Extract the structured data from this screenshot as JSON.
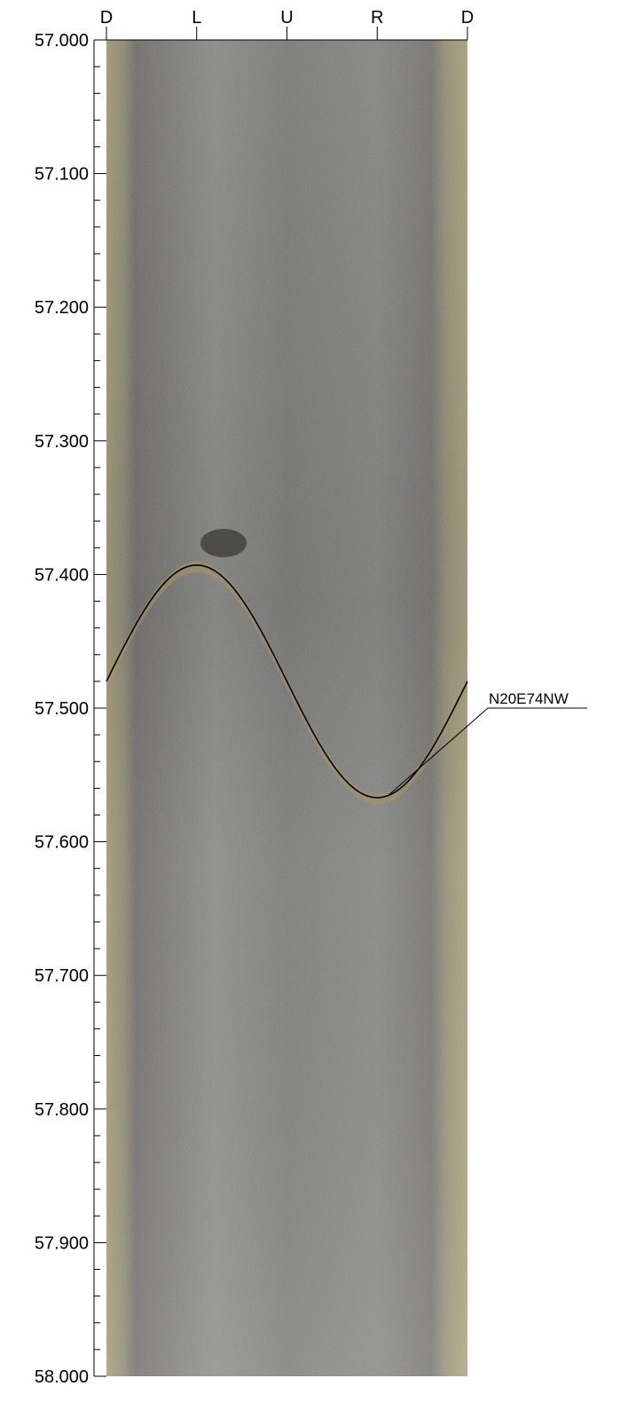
{
  "log": {
    "orientation_labels": [
      "D",
      "L",
      "U",
      "R",
      "D"
    ],
    "depth_labels": [
      "57.000",
      "57.100",
      "57.200",
      "57.300",
      "57.400",
      "57.500",
      "57.600",
      "57.700",
      "57.800",
      "57.900",
      "58.000"
    ],
    "depth_range": [
      57.0,
      58.0
    ],
    "minor_tick_step": 0.02,
    "fracture": {
      "label": "N20E74NW",
      "center_depth": 57.48,
      "amplitude": 0.087,
      "top_depth": 57.393,
      "bottom_depth": 57.567
    }
  },
  "colors": {
    "core_dark": "#6d6c6a",
    "core_light": "#9e9d9a",
    "edge_band": "#a99f77",
    "trace_line": "#000000"
  }
}
